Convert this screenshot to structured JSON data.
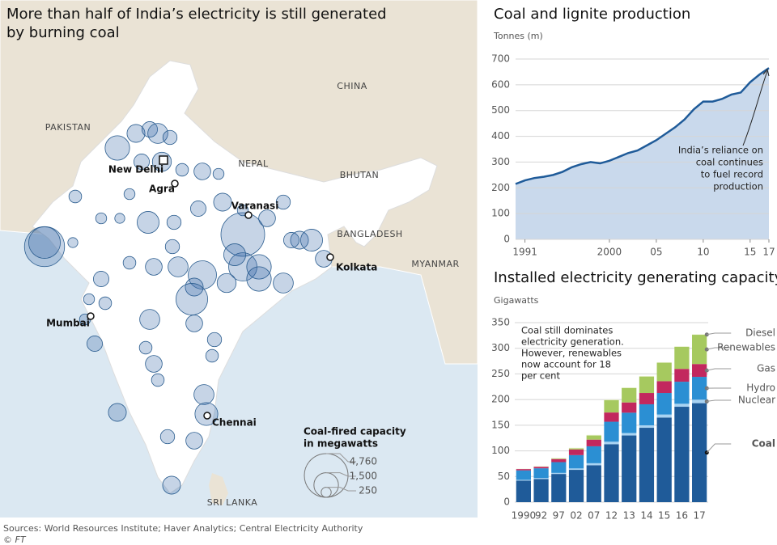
{
  "map": {
    "title_lines": [
      "More than half of India’s electricity is still generated",
      "by burning coal"
    ],
    "countries": [
      "PAKISTAN",
      "CHINA",
      "NEPAL",
      "BHUTAN",
      "BANGLADESH",
      "MYANMAR",
      "SRI LANKA"
    ],
    "cities": [
      "New Delhi",
      "Agra",
      "Varanasi",
      "Kolkata",
      "Mumbai",
      "Chennai"
    ],
    "legend": {
      "title_lines": [
        "Coal-fired capacity",
        "in megawatts"
      ],
      "sizes": [
        {
          "value": 4760,
          "label": "4,760"
        },
        {
          "value": 1500,
          "label": "1,500"
        },
        250
      ]
    },
    "capacity_mw": [
      1500,
      800,
      600,
      1000,
      500,
      600,
      900,
      700,
      400,
      300,
      400,
      300,
      300,
      250,
      1200,
      500,
      600,
      800,
      4760,
      700,
      500,
      800,
      1200,
      600,
      700,
      2000,
      1500,
      4000,
      2500,
      600,
      400,
      700,
      1000,
      2000,
      800,
      2500,
      700,
      900,
      1000,
      300,
      400,
      300,
      1000,
      600,
      500,
      400,
      700,
      400,
      800,
      1000,
      1300,
      500,
      700,
      800,
      400,
      500,
      300,
      250,
      1500,
      1200
    ]
  },
  "chart_data": [
    {
      "type": "line",
      "title": "Coal and lignite production",
      "y_label": "Tonnes (m)",
      "color": "#1f5b99",
      "area_color": "#c9d9ec",
      "x": [
        1990,
        1991,
        1992,
        1993,
        1994,
        1995,
        1996,
        1997,
        1998,
        1999,
        2000,
        2001,
        2002,
        2003,
        2004,
        2005,
        2006,
        2007,
        2008,
        2009,
        2010,
        2011,
        2012,
        2013,
        2014,
        2015,
        2016,
        2017
      ],
      "values": [
        215,
        229,
        238,
        243,
        250,
        262,
        280,
        292,
        300,
        295,
        305,
        320,
        335,
        345,
        365,
        385,
        410,
        435,
        465,
        505,
        535,
        535,
        545,
        562,
        570,
        610,
        640,
        665
      ],
      "xlim": [
        1990,
        2017
      ],
      "xticks": [
        1991,
        2000,
        {
          "value": 2005,
          "label": "05"
        },
        {
          "value": 2010,
          "label": "10"
        },
        {
          "value": 2015,
          "label": "15"
        },
        {
          "value": 2017,
          "label": "17"
        }
      ],
      "ylim": [
        0,
        700
      ],
      "yticks": [
        0,
        100,
        200,
        300,
        400,
        500,
        600,
        700
      ],
      "grid": true,
      "annotation_lines": [
        "India’s reliance on",
        "coal continues",
        "to fuel record",
        "production"
      ]
    },
    {
      "type": "bar",
      "stacked": true,
      "title": "Installed electricity generating capacity",
      "y_label": "Gigawatts",
      "categories": [
        "1990",
        "92",
        "97",
        "02",
        "07",
        "12",
        "13",
        "14",
        "15",
        "16",
        "17"
      ],
      "series": [
        {
          "name": "Coal",
          "color": "#1f5b99",
          "values": [
            42,
            45,
            55,
            63,
            72,
            113,
            130,
            145,
            165,
            186,
            193
          ]
        },
        {
          "name": "Nuclear",
          "color": "#a9d3f2",
          "values": [
            1.5,
            2,
            2,
            2.7,
            3.9,
            4.8,
            4.8,
            4.8,
            5.8,
            5.8,
            6.8
          ]
        },
        {
          "name": "Hydro",
          "color": "#2b8fd3",
          "values": [
            18.5,
            19,
            21,
            26,
            33,
            39,
            39.6,
            41,
            42,
            43,
            44.5
          ]
        },
        {
          "name": "Gas",
          "color": "#c2285e",
          "values": [
            2.5,
            3,
            6,
            11,
            13,
            18,
            20,
            22,
            23,
            25,
            25
          ]
        },
        {
          "name": "Renewables",
          "color": "#a6c95f",
          "values": [
            0,
            0,
            1,
            2,
            8,
            24,
            28,
            32,
            36,
            43,
            57
          ]
        },
        {
          "name": "Diesel",
          "color": "#e3edc0",
          "values": [
            0.5,
            1,
            1,
            1.2,
            1.2,
            1.2,
            1.2,
            1.2,
            1,
            0.9,
            0.8
          ]
        }
      ],
      "ylim": [
        0,
        350
      ],
      "yticks": [
        0,
        50,
        100,
        150,
        200,
        250,
        300,
        350
      ],
      "grid": true,
      "annotation_lines": [
        "Coal still dominates",
        "electricity generation.",
        "However, renewables",
        "now account for 18",
        "per cent"
      ]
    }
  ],
  "source": "Sources: World Resources Institute; Haver Analytics; Central Electricity Authority",
  "credit": "© FT"
}
